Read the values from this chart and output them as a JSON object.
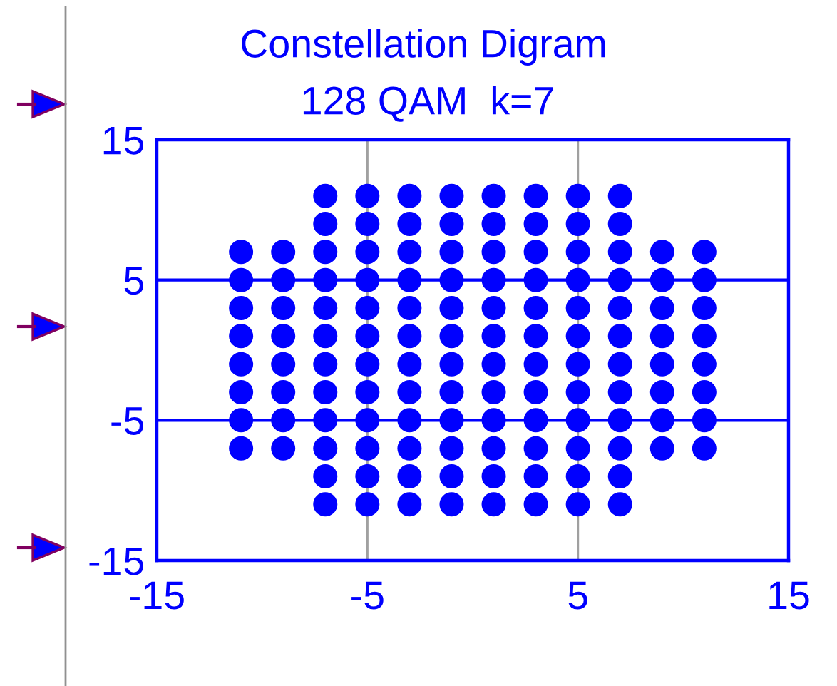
{
  "chart_data": {
    "type": "scatter",
    "title": "Constellation Digram",
    "subtitle": "128 QAM  k=7",
    "series": [
      {
        "color": "#0000ff",
        "x": [
          -7,
          -5,
          -3,
          -1,
          1,
          3,
          5,
          7,
          -7,
          -5,
          -3,
          -1,
          1,
          3,
          5,
          7,
          -11,
          -9,
          -7,
          -5,
          -3,
          -1,
          1,
          3,
          5,
          7,
          9,
          11,
          -11,
          -9,
          -7,
          -5,
          -3,
          -1,
          1,
          3,
          5,
          7,
          9,
          11,
          -11,
          -9,
          -7,
          -5,
          -3,
          -1,
          1,
          3,
          5,
          7,
          9,
          11,
          -11,
          -9,
          -7,
          -5,
          -3,
          -1,
          1,
          3,
          5,
          7,
          9,
          11,
          -11,
          -9,
          -7,
          -5,
          -3,
          -1,
          1,
          3,
          5,
          7,
          9,
          11,
          -11,
          -9,
          -7,
          -5,
          -3,
          -1,
          1,
          3,
          5,
          7,
          9,
          11,
          -11,
          -9,
          -7,
          -5,
          -3,
          -1,
          1,
          3,
          5,
          7,
          9,
          11,
          -11,
          -9,
          -7,
          -5,
          -3,
          -1,
          1,
          3,
          5,
          7,
          9,
          11,
          -7,
          -5,
          -3,
          -1,
          1,
          3,
          5,
          7,
          -7,
          -5,
          -3,
          -1,
          1,
          3,
          5,
          7
        ],
        "values": [
          11,
          11,
          11,
          11,
          11,
          11,
          11,
          11,
          9,
          9,
          9,
          9,
          9,
          9,
          9,
          9,
          7,
          7,
          7,
          7,
          7,
          7,
          7,
          7,
          7,
          7,
          7,
          7,
          5,
          5,
          5,
          5,
          5,
          5,
          5,
          5,
          5,
          5,
          5,
          5,
          3,
          3,
          3,
          3,
          3,
          3,
          3,
          3,
          3,
          3,
          3,
          3,
          1,
          1,
          1,
          1,
          1,
          1,
          1,
          1,
          1,
          1,
          1,
          1,
          -1,
          -1,
          -1,
          -1,
          -1,
          -1,
          -1,
          -1,
          -1,
          -1,
          -1,
          -1,
          -3,
          -3,
          -3,
          -3,
          -3,
          -3,
          -3,
          -3,
          -3,
          -3,
          -3,
          -3,
          -5,
          -5,
          -5,
          -5,
          -5,
          -5,
          -5,
          -5,
          -5,
          -5,
          -5,
          -5,
          -7,
          -7,
          -7,
          -7,
          -7,
          -7,
          -7,
          -7,
          -7,
          -7,
          -7,
          -7,
          -9,
          -9,
          -9,
          -9,
          -9,
          -9,
          -9,
          -9,
          -11,
          -11,
          -11,
          -11,
          -11,
          -11,
          -11,
          -11
        ]
      }
    ],
    "marker": "circle",
    "xlim": [
      -15,
      15
    ],
    "xticks": [
      -15,
      -5,
      5,
      15
    ],
    "ylim": [
      -15,
      15
    ],
    "yticks": [
      -15,
      -5,
      5,
      15
    ],
    "grid": true
  }
}
